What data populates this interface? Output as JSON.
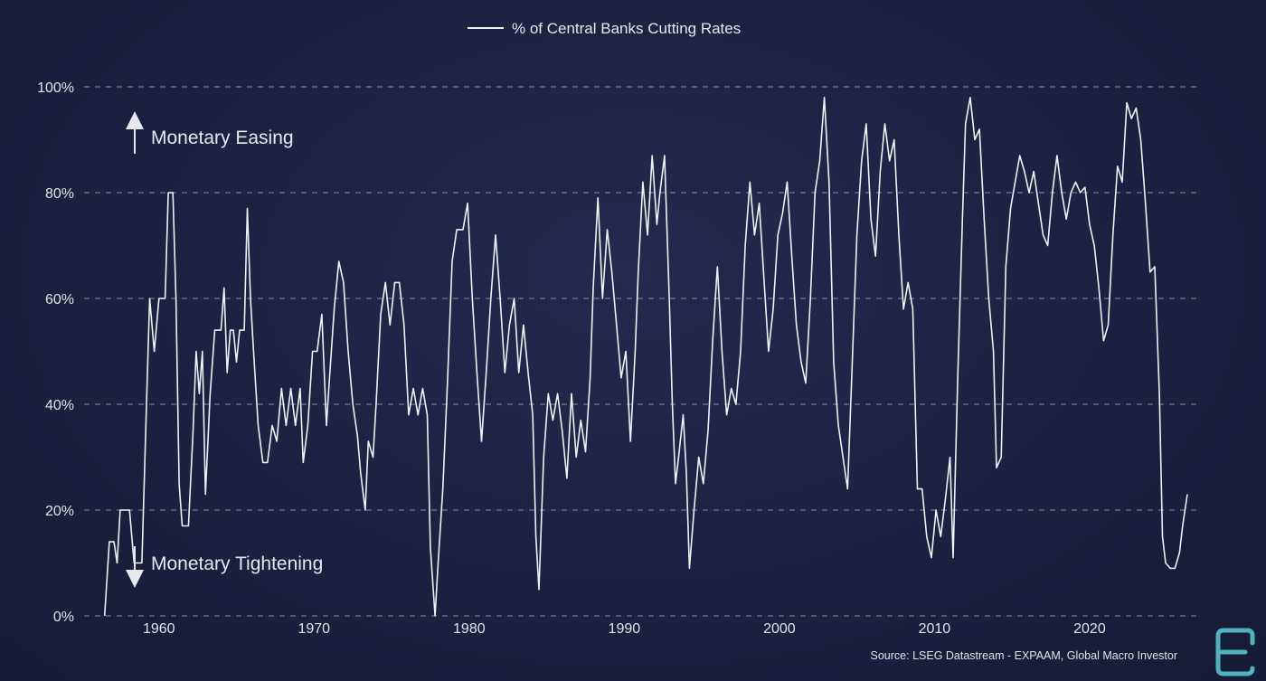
{
  "chart_data": {
    "type": "line",
    "title": "",
    "xlabel": "",
    "ylabel": "",
    "legend": {
      "label": "% of Central Banks Cutting Rates",
      "position": "top-center"
    },
    "grid": "horizontal-dashed",
    "xlim": [
      1955,
      2027
    ],
    "ylim": [
      0,
      100
    ],
    "x_ticks": [
      1960,
      1970,
      1980,
      1990,
      2000,
      2010,
      2020
    ],
    "y_ticks": [
      0,
      20,
      40,
      60,
      80,
      100
    ],
    "y_tick_labels": [
      "0%",
      "20%",
      "40%",
      "60%",
      "80%",
      "100%"
    ],
    "annotations": {
      "easing": "Monetary Easing",
      "tightening": "Monetary Tightening"
    },
    "source": "Source: LSEG Datastream - EXPAAM, Global Macro Investor",
    "colors": {
      "line": "#eef1f4",
      "background": "#1b2140",
      "grid": "#8a90a6",
      "logo": "#4fb3bd"
    },
    "logo_icon": "gmi-logo-icon",
    "series": [
      {
        "name": "% of Central Banks Cutting Rates",
        "points": [
          [
            1956.5,
            0
          ],
          [
            1956.8,
            14
          ],
          [
            1957.1,
            14
          ],
          [
            1957.3,
            10
          ],
          [
            1957.5,
            20
          ],
          [
            1958.1,
            20
          ],
          [
            1958.4,
            10
          ],
          [
            1958.9,
            10
          ],
          [
            1959.2,
            40
          ],
          [
            1959.4,
            60
          ],
          [
            1959.7,
            50
          ],
          [
            1960.0,
            60
          ],
          [
            1960.4,
            60
          ],
          [
            1960.6,
            80
          ],
          [
            1960.9,
            80
          ],
          [
            1961.1,
            60
          ],
          [
            1961.3,
            25
          ],
          [
            1961.5,
            17
          ],
          [
            1961.9,
            17
          ],
          [
            1962.2,
            35
          ],
          [
            1962.4,
            50
          ],
          [
            1962.6,
            42
          ],
          [
            1962.8,
            50
          ],
          [
            1963.0,
            23
          ],
          [
            1963.3,
            42
          ],
          [
            1963.6,
            54
          ],
          [
            1964.0,
            54
          ],
          [
            1964.2,
            62
          ],
          [
            1964.4,
            46
          ],
          [
            1964.6,
            54
          ],
          [
            1964.8,
            54
          ],
          [
            1965.0,
            48
          ],
          [
            1965.2,
            54
          ],
          [
            1965.5,
            54
          ],
          [
            1965.7,
            77
          ],
          [
            1965.9,
            60
          ],
          [
            1966.1,
            50
          ],
          [
            1966.4,
            36
          ],
          [
            1966.7,
            29
          ],
          [
            1967.0,
            29
          ],
          [
            1967.3,
            36
          ],
          [
            1967.6,
            33
          ],
          [
            1967.9,
            43
          ],
          [
            1968.2,
            36
          ],
          [
            1968.5,
            43
          ],
          [
            1968.8,
            36
          ],
          [
            1969.1,
            43
          ],
          [
            1969.3,
            29
          ],
          [
            1969.6,
            36
          ],
          [
            1969.9,
            50
          ],
          [
            1970.2,
            50
          ],
          [
            1970.5,
            57
          ],
          [
            1970.8,
            36
          ],
          [
            1971.0,
            45
          ],
          [
            1971.3,
            58
          ],
          [
            1971.6,
            67
          ],
          [
            1971.9,
            63
          ],
          [
            1972.2,
            50
          ],
          [
            1972.5,
            40
          ],
          [
            1972.8,
            34
          ],
          [
            1973.0,
            27
          ],
          [
            1973.3,
            20
          ],
          [
            1973.5,
            33
          ],
          [
            1973.8,
            30
          ],
          [
            1974.0,
            40
          ],
          [
            1974.3,
            57
          ],
          [
            1974.6,
            63
          ],
          [
            1974.9,
            55
          ],
          [
            1975.2,
            63
          ],
          [
            1975.5,
            63
          ],
          [
            1975.8,
            55
          ],
          [
            1976.1,
            38
          ],
          [
            1976.4,
            43
          ],
          [
            1976.7,
            38
          ],
          [
            1977.0,
            43
          ],
          [
            1977.3,
            38
          ],
          [
            1977.5,
            13
          ],
          [
            1977.8,
            0
          ],
          [
            1978.0,
            10
          ],
          [
            1978.3,
            24
          ],
          [
            1978.6,
            44
          ],
          [
            1978.9,
            67
          ],
          [
            1979.2,
            73
          ],
          [
            1979.6,
            73
          ],
          [
            1979.9,
            78
          ],
          [
            1980.2,
            60
          ],
          [
            1980.5,
            46
          ],
          [
            1980.8,
            33
          ],
          [
            1981.1,
            46
          ],
          [
            1981.4,
            60
          ],
          [
            1981.7,
            72
          ],
          [
            1982.0,
            60
          ],
          [
            1982.3,
            46
          ],
          [
            1982.6,
            55
          ],
          [
            1982.9,
            60
          ],
          [
            1983.2,
            46
          ],
          [
            1983.5,
            55
          ],
          [
            1983.8,
            46
          ],
          [
            1984.1,
            38
          ],
          [
            1984.3,
            15
          ],
          [
            1984.5,
            5
          ],
          [
            1984.8,
            30
          ],
          [
            1985.1,
            42
          ],
          [
            1985.4,
            37
          ],
          [
            1985.7,
            42
          ],
          [
            1986.0,
            35
          ],
          [
            1986.3,
            26
          ],
          [
            1986.6,
            42
          ],
          [
            1986.9,
            30
          ],
          [
            1987.2,
            37
          ],
          [
            1987.5,
            31
          ],
          [
            1987.8,
            45
          ],
          [
            1988.0,
            62
          ],
          [
            1988.3,
            79
          ],
          [
            1988.6,
            60
          ],
          [
            1988.9,
            73
          ],
          [
            1989.2,
            65
          ],
          [
            1989.5,
            55
          ],
          [
            1989.8,
            45
          ],
          [
            1990.1,
            50
          ],
          [
            1990.4,
            33
          ],
          [
            1990.7,
            50
          ],
          [
            1990.9,
            65
          ],
          [
            1991.2,
            82
          ],
          [
            1991.5,
            72
          ],
          [
            1991.8,
            87
          ],
          [
            1992.1,
            74
          ],
          [
            1992.3,
            80
          ],
          [
            1992.6,
            87
          ],
          [
            1992.9,
            60
          ],
          [
            1993.1,
            40
          ],
          [
            1993.3,
            25
          ],
          [
            1993.5,
            30
          ],
          [
            1993.8,
            38
          ],
          [
            1994.0,
            27
          ],
          [
            1994.2,
            9
          ],
          [
            1994.5,
            20
          ],
          [
            1994.8,
            30
          ],
          [
            1995.1,
            25
          ],
          [
            1995.4,
            35
          ],
          [
            1995.7,
            52
          ],
          [
            1996.0,
            66
          ],
          [
            1996.3,
            50
          ],
          [
            1996.6,
            38
          ],
          [
            1996.9,
            43
          ],
          [
            1997.2,
            40
          ],
          [
            1997.5,
            50
          ],
          [
            1997.8,
            70
          ],
          [
            1998.1,
            82
          ],
          [
            1998.4,
            72
          ],
          [
            1998.7,
            78
          ],
          [
            1999.0,
            64
          ],
          [
            1999.3,
            50
          ],
          [
            1999.6,
            58
          ],
          [
            1999.9,
            72
          ],
          [
            2000.2,
            76
          ],
          [
            2000.5,
            82
          ],
          [
            2000.8,
            68
          ],
          [
            2001.1,
            55
          ],
          [
            2001.4,
            48
          ],
          [
            2001.7,
            44
          ],
          [
            2002.0,
            60
          ],
          [
            2002.3,
            80
          ],
          [
            2002.6,
            86
          ],
          [
            2002.9,
            98
          ],
          [
            2003.2,
            82
          ],
          [
            2003.5,
            48
          ],
          [
            2003.8,
            36
          ],
          [
            2004.1,
            30
          ],
          [
            2004.4,
            24
          ],
          [
            2004.7,
            48
          ],
          [
            2005.0,
            72
          ],
          [
            2005.3,
            86
          ],
          [
            2005.6,
            93
          ],
          [
            2005.9,
            75
          ],
          [
            2006.2,
            68
          ],
          [
            2006.5,
            84
          ],
          [
            2006.8,
            93
          ],
          [
            2007.1,
            86
          ],
          [
            2007.4,
            90
          ],
          [
            2007.7,
            72
          ],
          [
            2008.0,
            58
          ],
          [
            2008.3,
            63
          ],
          [
            2008.6,
            58
          ],
          [
            2008.9,
            24
          ],
          [
            2009.2,
            24
          ],
          [
            2009.5,
            15
          ],
          [
            2009.8,
            11
          ],
          [
            2010.1,
            20
          ],
          [
            2010.4,
            15
          ],
          [
            2010.7,
            22
          ],
          [
            2011.0,
            30
          ],
          [
            2011.2,
            11
          ],
          [
            2011.5,
            45
          ],
          [
            2011.8,
            75
          ],
          [
            2012.0,
            93
          ],
          [
            2012.3,
            98
          ],
          [
            2012.6,
            90
          ],
          [
            2012.9,
            92
          ],
          [
            2013.2,
            75
          ],
          [
            2013.5,
            60
          ],
          [
            2013.8,
            50
          ],
          [
            2014.0,
            28
          ],
          [
            2014.3,
            30
          ],
          [
            2014.6,
            66
          ],
          [
            2014.9,
            77
          ],
          [
            2015.2,
            82
          ],
          [
            2015.5,
            87
          ],
          [
            2015.8,
            84
          ],
          [
            2016.1,
            80
          ],
          [
            2016.4,
            84
          ],
          [
            2016.7,
            78
          ],
          [
            2017.0,
            72
          ],
          [
            2017.3,
            70
          ],
          [
            2017.6,
            80
          ],
          [
            2017.9,
            87
          ],
          [
            2018.2,
            80
          ],
          [
            2018.5,
            75
          ],
          [
            2018.8,
            80
          ],
          [
            2019.1,
            82
          ],
          [
            2019.4,
            80
          ],
          [
            2019.7,
            81
          ],
          [
            2020.0,
            74
          ],
          [
            2020.3,
            70
          ],
          [
            2020.6,
            62
          ],
          [
            2020.9,
            52
          ],
          [
            2021.2,
            55
          ],
          [
            2021.5,
            72
          ],
          [
            2021.8,
            85
          ],
          [
            2022.1,
            82
          ],
          [
            2022.4,
            97
          ],
          [
            2022.7,
            94
          ],
          [
            2023.0,
            96
          ],
          [
            2023.3,
            90
          ],
          [
            2023.6,
            78
          ],
          [
            2023.9,
            65
          ],
          [
            2024.2,
            66
          ],
          [
            2024.5,
            42
          ],
          [
            2024.7,
            15
          ],
          [
            2024.9,
            10
          ],
          [
            2025.2,
            9
          ],
          [
            2025.5,
            9
          ],
          [
            2025.8,
            12
          ],
          [
            2026.0,
            17
          ],
          [
            2026.3,
            23
          ]
        ]
      }
    ]
  }
}
